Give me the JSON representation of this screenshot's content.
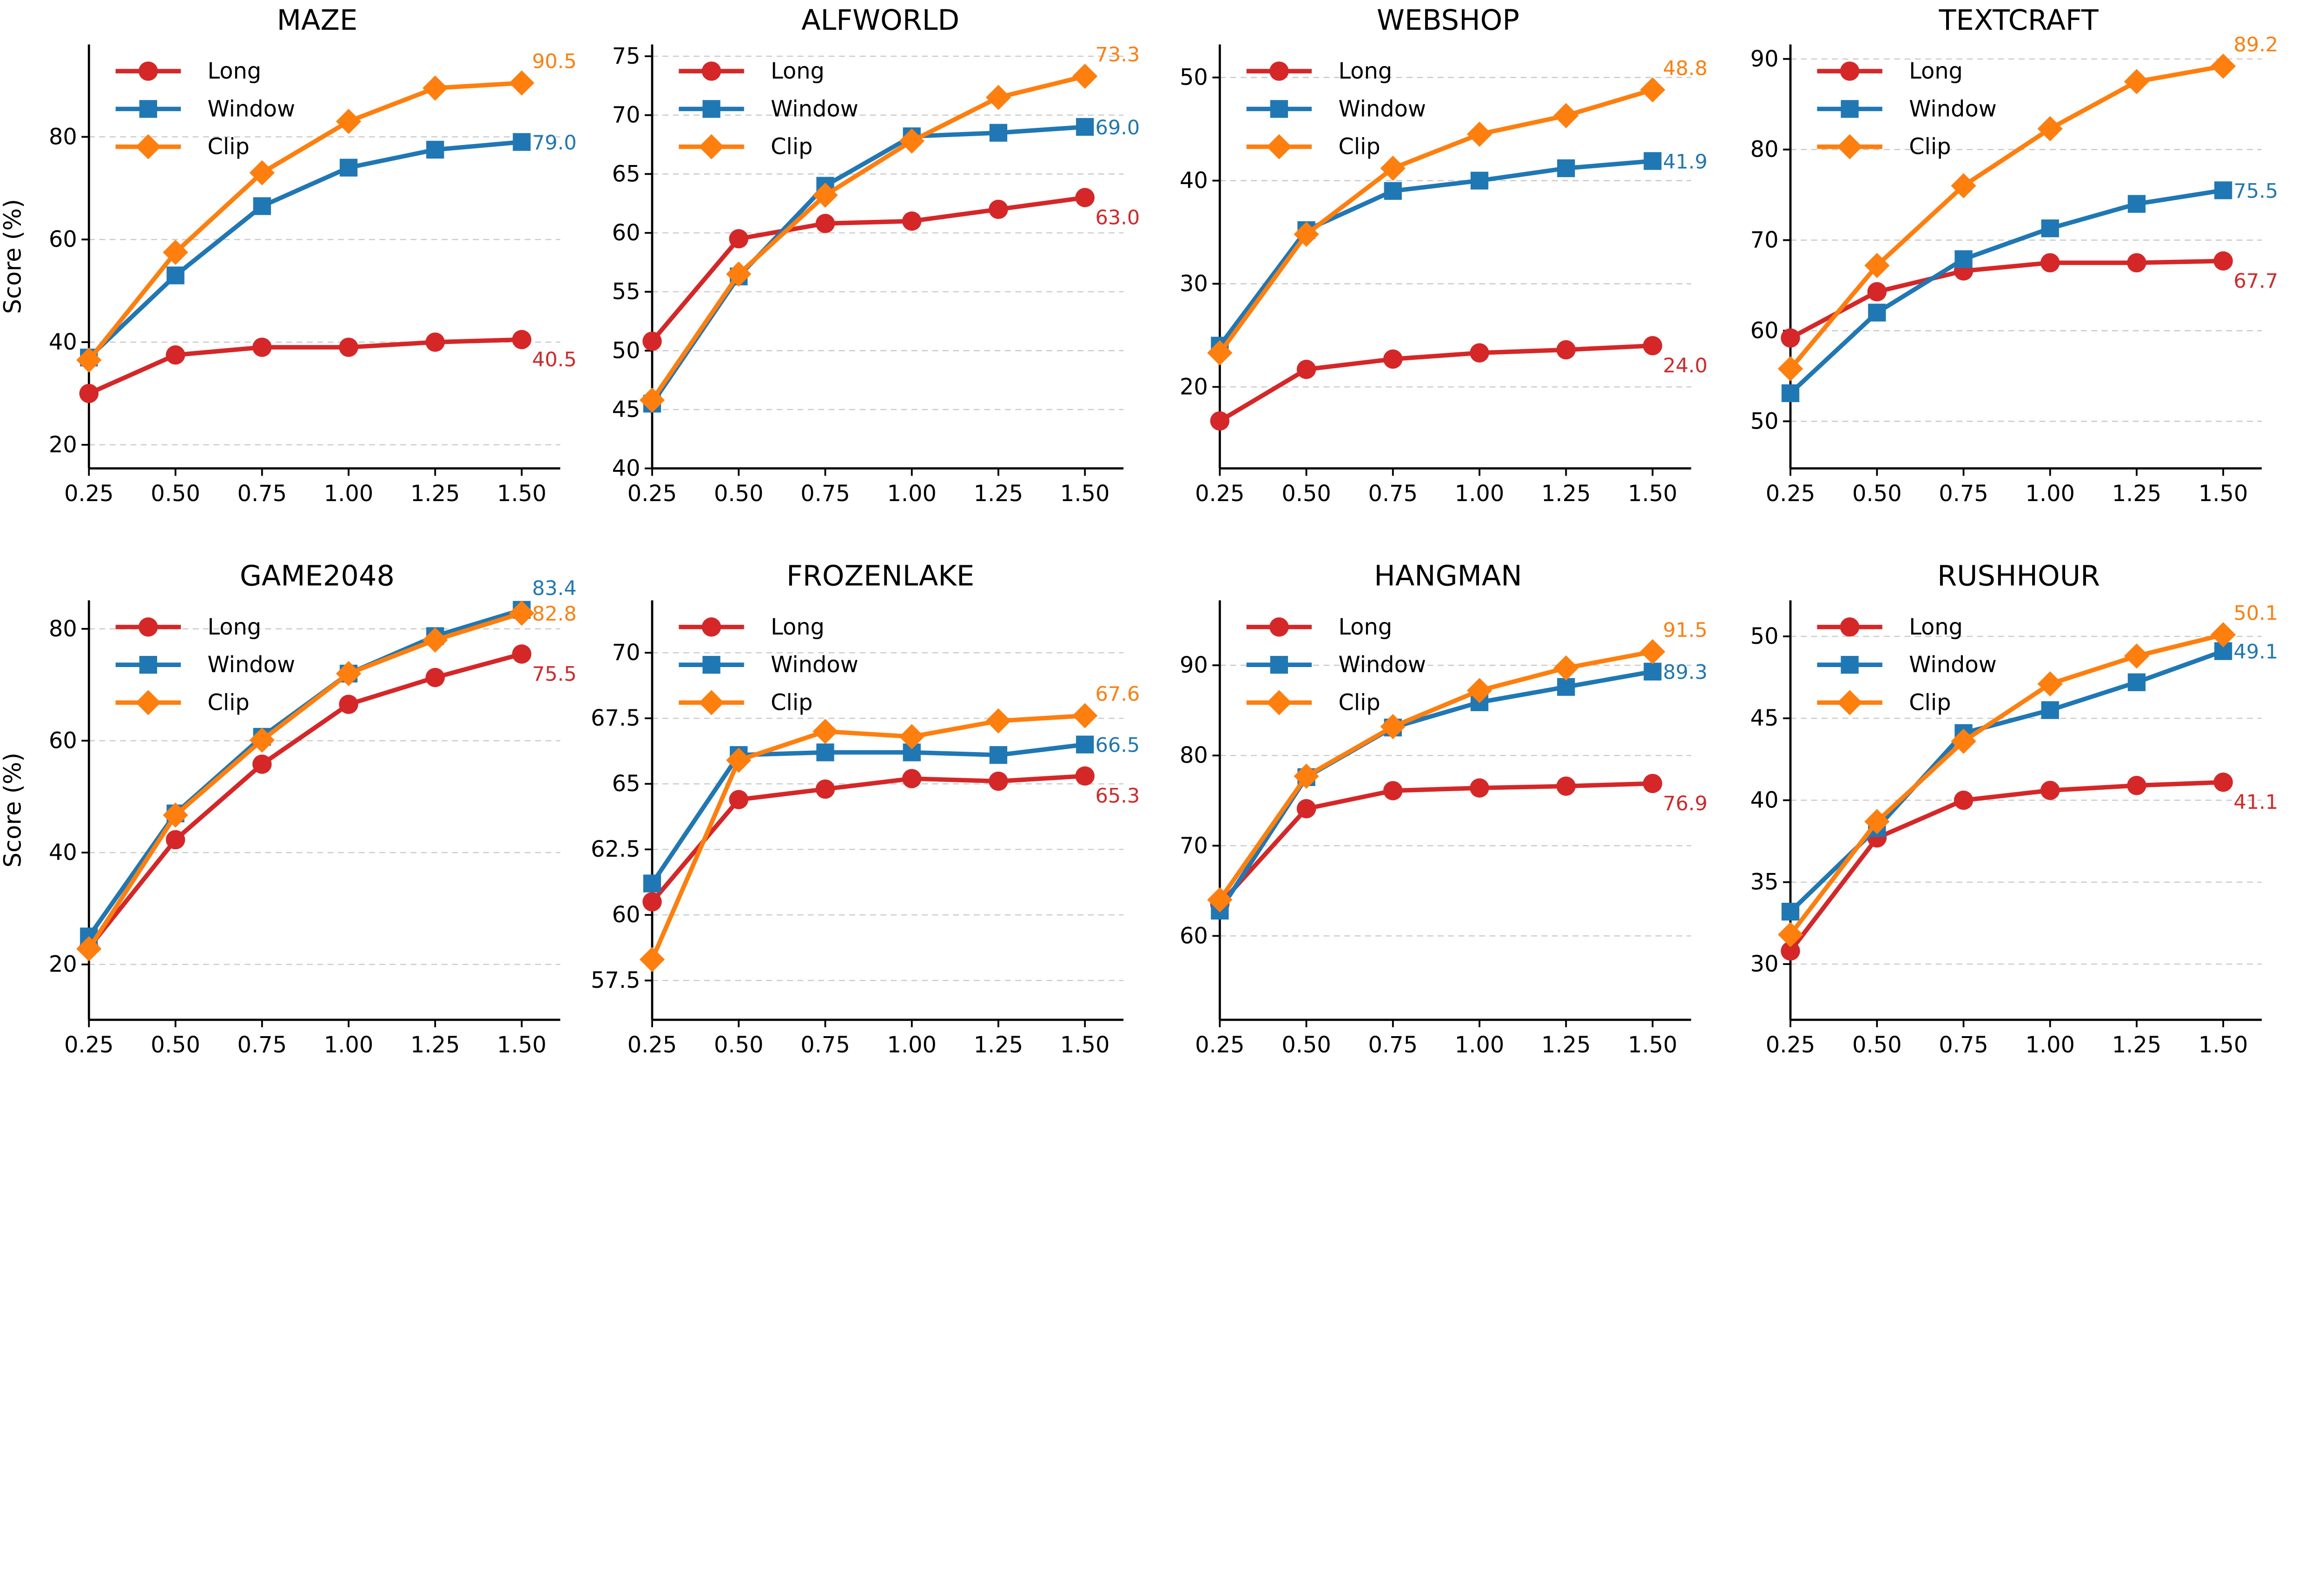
{
  "chart_data": [
    {
      "type": "line",
      "title": "MAZE",
      "ylabel": "Score (%)",
      "x": [
        0.25,
        0.5,
        0.75,
        1.0,
        1.25,
        1.5
      ],
      "ylim": [
        15.4,
        98
      ],
      "yticks": [
        20,
        40,
        60,
        80
      ],
      "series": [
        {
          "name": "Long",
          "values": [
            30,
            37.5,
            39,
            39,
            40,
            40.5
          ],
          "end_label": "40.5"
        },
        {
          "name": "Window",
          "values": [
            37,
            53,
            66.5,
            74,
            77.5,
            79.0
          ],
          "end_label": "79.0"
        },
        {
          "name": "Clip",
          "values": [
            36.5,
            57.5,
            73,
            83,
            89.5,
            90.5
          ],
          "end_label": "90.5"
        }
      ]
    },
    {
      "type": "line",
      "title": "ALFWORLD",
      "ylabel": "",
      "x": [
        0.25,
        0.5,
        0.75,
        1.0,
        1.25,
        1.5
      ],
      "ylim": [
        40,
        76
      ],
      "yticks": [
        40,
        45,
        50,
        55,
        60,
        65,
        70,
        75
      ],
      "series": [
        {
          "name": "Long",
          "values": [
            50.8,
            59.5,
            60.8,
            61,
            62,
            63.0
          ],
          "end_label": "63.0"
        },
        {
          "name": "Window",
          "values": [
            45.5,
            56.3,
            64,
            68.2,
            68.5,
            69.0
          ],
          "end_label": "69.0"
        },
        {
          "name": "Clip",
          "values": [
            45.8,
            56.5,
            63.2,
            67.8,
            71.5,
            73.3
          ],
          "end_label": "73.3"
        }
      ]
    },
    {
      "type": "line",
      "title": "WEBSHOP",
      "ylabel": "",
      "x": [
        0.25,
        0.5,
        0.75,
        1.0,
        1.25,
        1.5
      ],
      "ylim": [
        12.1,
        53.2
      ],
      "yticks": [
        20,
        30,
        40,
        50
      ],
      "series": [
        {
          "name": "Long",
          "values": [
            16.7,
            21.7,
            22.7,
            23.3,
            23.6,
            24.0
          ],
          "end_label": "24.0"
        },
        {
          "name": "Window",
          "values": [
            24,
            35.2,
            39,
            40,
            41.2,
            41.9
          ],
          "end_label": "41.9"
        },
        {
          "name": "Clip",
          "values": [
            23.3,
            34.8,
            41.2,
            44.5,
            46.3,
            48.8
          ],
          "end_label": "48.8"
        }
      ]
    },
    {
      "type": "line",
      "title": "TEXTCRAFT",
      "ylabel": "",
      "x": [
        0.25,
        0.5,
        0.75,
        1.0,
        1.25,
        1.5
      ],
      "ylim": [
        44.8,
        91.6
      ],
      "yticks": [
        50,
        60,
        70,
        80,
        90
      ],
      "series": [
        {
          "name": "Long",
          "values": [
            59.2,
            64.3,
            66.6,
            67.5,
            67.5,
            67.7
          ],
          "end_label": "67.7"
        },
        {
          "name": "Window",
          "values": [
            53.1,
            62,
            67.9,
            71.3,
            74,
            75.5
          ],
          "end_label": "75.5"
        },
        {
          "name": "Clip",
          "values": [
            55.8,
            67.2,
            76,
            82.3,
            87.5,
            89.2
          ],
          "end_label": "89.2"
        }
      ]
    },
    {
      "type": "line",
      "title": "GAME2048",
      "ylabel": "Score (%)",
      "x": [
        0.25,
        0.5,
        0.75,
        1.0,
        1.25,
        1.5
      ],
      "ylim": [
        10.1,
        85.1
      ],
      "yticks": [
        20,
        40,
        60,
        80
      ],
      "series": [
        {
          "name": "Long",
          "values": [
            23,
            42.3,
            55.8,
            66.5,
            71.3,
            75.5
          ],
          "end_label": "75.5"
        },
        {
          "name": "Window",
          "values": [
            25,
            47,
            60.7,
            72,
            78.7,
            83.4
          ],
          "end_label": "83.4"
        },
        {
          "name": "Clip",
          "values": [
            22.8,
            46.7,
            60.1,
            72,
            78,
            82.8
          ],
          "end_label": "82.8"
        }
      ]
    },
    {
      "type": "line",
      "title": "FROZENLAKE",
      "ylabel": "",
      "x": [
        0.25,
        0.5,
        0.75,
        1.0,
        1.25,
        1.5
      ],
      "ylim": [
        56.0,
        72.0
      ],
      "yticks": [
        57.5,
        60.0,
        62.5,
        65.0,
        67.5,
        70.0
      ],
      "series": [
        {
          "name": "Long",
          "values": [
            60.5,
            64.4,
            64.8,
            65.2,
            65.1,
            65.3
          ],
          "end_label": "65.3"
        },
        {
          "name": "Window",
          "values": [
            61.2,
            66.1,
            66.2,
            66.2,
            66.1,
            66.5
          ],
          "end_label": "66.5"
        },
        {
          "name": "Clip",
          "values": [
            58.3,
            65.9,
            67.0,
            66.8,
            67.4,
            67.6
          ],
          "end_label": "67.6"
        }
      ]
    },
    {
      "type": "line",
      "title": "HANGMAN",
      "ylabel": "",
      "x": [
        0.25,
        0.5,
        0.75,
        1.0,
        1.25,
        1.5
      ],
      "ylim": [
        50.7,
        97.2
      ],
      "yticks": [
        60,
        70,
        80,
        90
      ],
      "series": [
        {
          "name": "Long",
          "values": [
            63.5,
            74.1,
            76.1,
            76.4,
            76.6,
            76.9
          ],
          "end_label": "76.9"
        },
        {
          "name": "Window",
          "values": [
            62.8,
            77.6,
            83.1,
            85.9,
            87.6,
            89.3
          ],
          "end_label": "89.3"
        },
        {
          "name": "Clip",
          "values": [
            64,
            77.7,
            83.2,
            87.2,
            89.7,
            91.5
          ],
          "end_label": "91.5"
        }
      ]
    },
    {
      "type": "line",
      "title": "RUSHHOUR",
      "ylabel": "",
      "x": [
        0.25,
        0.5,
        0.75,
        1.0,
        1.25,
        1.5
      ],
      "ylim": [
        26.6,
        52.2
      ],
      "yticks": [
        30,
        35,
        40,
        45,
        50
      ],
      "series": [
        {
          "name": "Long",
          "values": [
            30.8,
            37.7,
            40.0,
            40.6,
            40.9,
            41.1
          ],
          "end_label": "41.1"
        },
        {
          "name": "Window",
          "values": [
            33.2,
            38.3,
            44.1,
            45.5,
            47.2,
            49.1
          ],
          "end_label": "49.1"
        },
        {
          "name": "Clip",
          "values": [
            31.8,
            38.7,
            43.6,
            47.1,
            48.8,
            50.1
          ],
          "end_label": "50.1"
        }
      ]
    }
  ],
  "xtick_labels": [
    "0.25",
    "0.50",
    "0.75",
    "1.00",
    "1.25",
    "1.50"
  ],
  "grid": "horizontal dashed",
  "legend_placement": "top-left",
  "colors": {
    "Long": "#d62728",
    "Window": "#1f77b4",
    "Clip": "#ff7f0e"
  },
  "markers": {
    "Long": "circle",
    "Window": "square",
    "Clip": "diamond"
  }
}
